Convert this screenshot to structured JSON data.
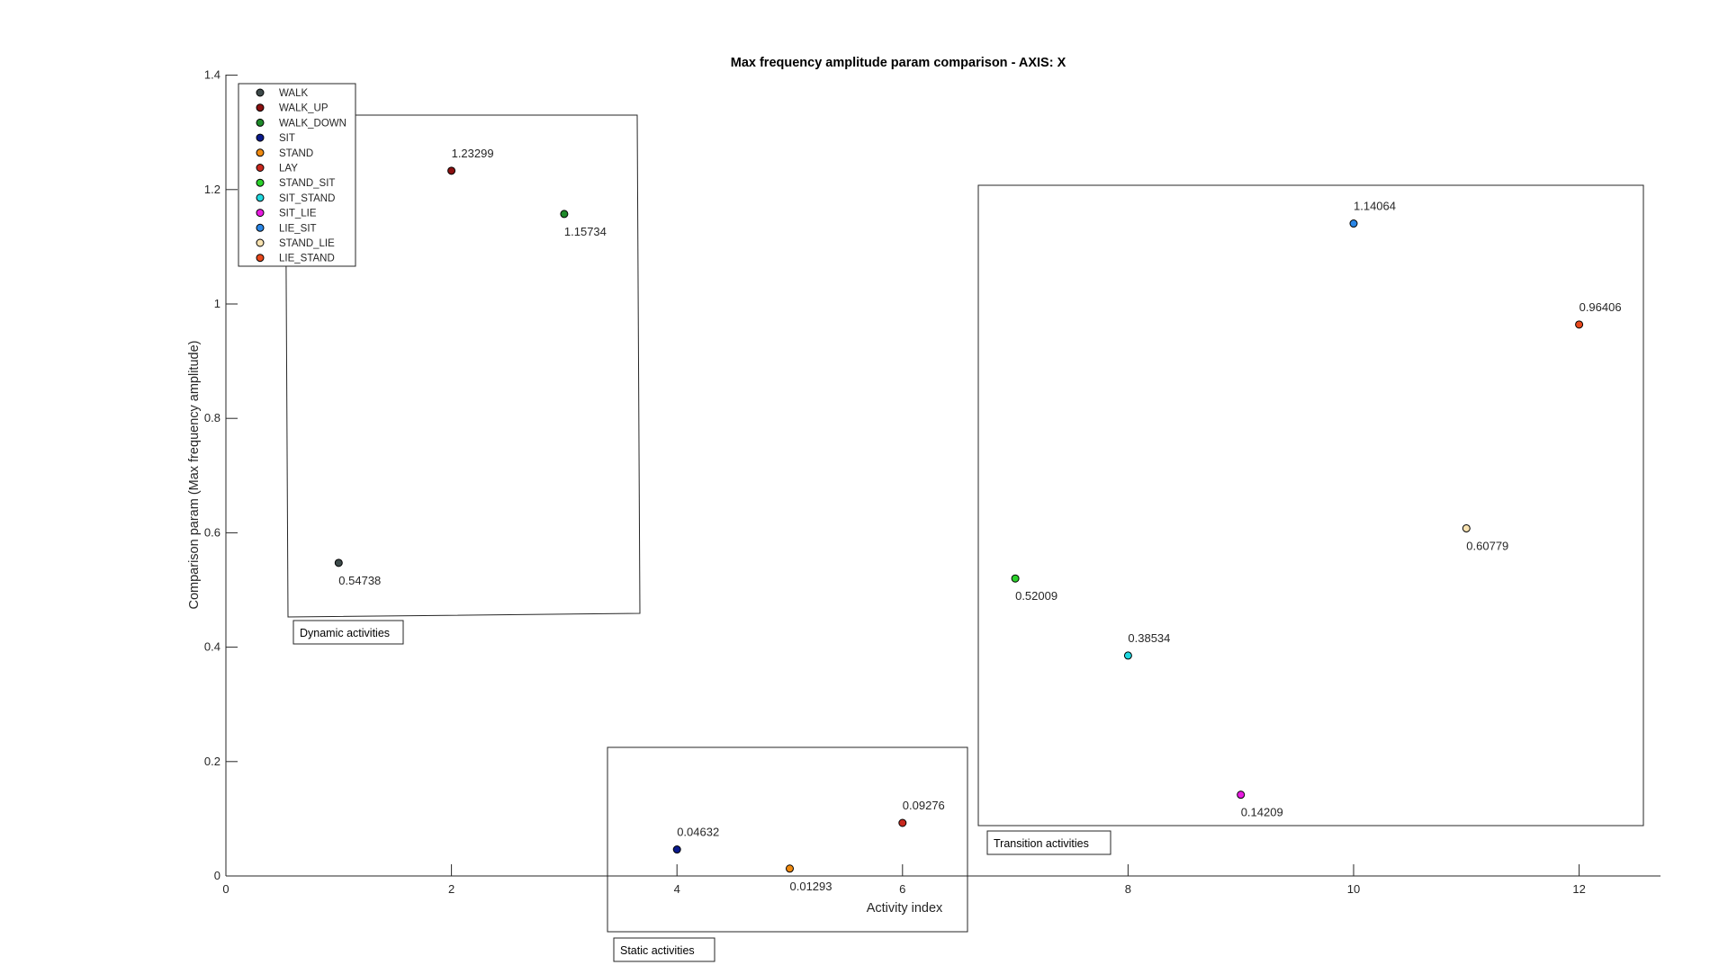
{
  "chart_data": {
    "type": "scatter",
    "title": "Max frequency amplitude param comparison - AXIS: X",
    "xlabel": "Activity index",
    "ylabel": "Comparison param (Max frequency amplitude)",
    "xlim": [
      0,
      12.5
    ],
    "ylim": [
      0,
      1.4
    ],
    "xticks": [
      0,
      2,
      4,
      6,
      8,
      10,
      12
    ],
    "yticks": [
      0,
      0.2,
      0.4,
      0.6,
      0.8,
      1,
      1.2,
      1.4
    ],
    "grid": false,
    "legend_position": "top-left",
    "series": [
      {
        "name": "WALK",
        "x": 1,
        "y": 0.54738,
        "label": "0.54738",
        "color": "#3d4a4a",
        "label_pos": "below"
      },
      {
        "name": "WALK_UP",
        "x": 2,
        "y": 1.23299,
        "label": "1.23299",
        "color": "#8b1010",
        "label_pos": "above"
      },
      {
        "name": "WALK_DOWN",
        "x": 3,
        "y": 1.15734,
        "label": "1.15734",
        "color": "#1f8a2a",
        "label_pos": "below"
      },
      {
        "name": "SIT",
        "x": 4,
        "y": 0.04632,
        "label": "0.04632",
        "color": "#0a1a8c",
        "label_pos": "above"
      },
      {
        "name": "STAND",
        "x": 5,
        "y": 0.01293,
        "label": "0.01293",
        "color": "#f08a10",
        "label_pos": "below"
      },
      {
        "name": "LAY",
        "x": 6,
        "y": 0.09276,
        "label": "0.09276",
        "color": "#c8281e",
        "label_pos": "above"
      },
      {
        "name": "STAND_SIT",
        "x": 7,
        "y": 0.52009,
        "label": "0.52009",
        "color": "#2bd12b",
        "label_pos": "below"
      },
      {
        "name": "SIT_STAND",
        "x": 8,
        "y": 0.38534,
        "label": "0.38534",
        "color": "#1fd8e0",
        "label_pos": "above"
      },
      {
        "name": "SIT_LIE",
        "x": 9,
        "y": 0.14209,
        "label": "0.14209",
        "color": "#e81be0",
        "label_pos": "below"
      },
      {
        "name": "LIE_SIT",
        "x": 10,
        "y": 1.14064,
        "label": "1.14064",
        "color": "#2a86e6",
        "label_pos": "above"
      },
      {
        "name": "STAND_LIE",
        "x": 11,
        "y": 0.60779,
        "label": "0.60779",
        "color": "#f8e2b0",
        "label_pos": "below"
      },
      {
        "name": "LIE_STAND",
        "x": 12,
        "y": 0.96406,
        "label": "0.96406",
        "color": "#e8481c",
        "label_pos": "above"
      }
    ],
    "annotations": [
      {
        "text": "Dynamic activities"
      },
      {
        "text": "Static activities"
      },
      {
        "text": "Transition activities"
      }
    ]
  }
}
